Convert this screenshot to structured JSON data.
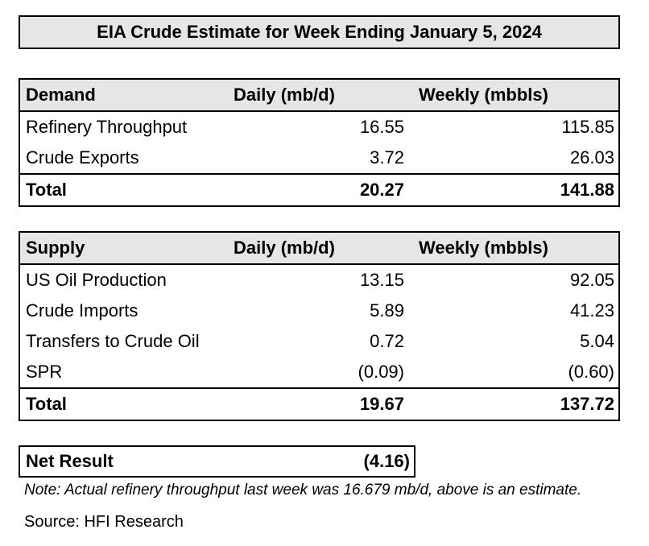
{
  "title": "EIA Crude Estimate for Week Ending January 5, 2024",
  "demand": {
    "headers": [
      "Demand",
      "Daily (mb/d)",
      "Weekly (mbbls)"
    ],
    "rows": [
      {
        "label": "Refinery Throughput",
        "daily": "16.55",
        "weekly": "115.85"
      },
      {
        "label": "Crude Exports",
        "daily": "3.72",
        "weekly": "26.03"
      }
    ],
    "total": {
      "label": "Total",
      "daily": "20.27",
      "weekly": "141.88"
    }
  },
  "supply": {
    "headers": [
      "Supply",
      "Daily (mb/d)",
      "Weekly (mbbls)"
    ],
    "rows": [
      {
        "label": "US Oil Production",
        "daily": "13.15",
        "weekly": "92.05"
      },
      {
        "label": "Crude Imports",
        "daily": "5.89",
        "weekly": "41.23"
      },
      {
        "label": "Transfers to Crude Oil",
        "daily": "0.72",
        "weekly": "5.04"
      },
      {
        "label": "SPR",
        "daily": "(0.09)",
        "weekly": "(0.60)"
      }
    ],
    "total": {
      "label": "Total",
      "daily": "19.67",
      "weekly": "137.72"
    }
  },
  "net_result": {
    "label": "Net Result",
    "value": "(4.16)"
  },
  "note": "Note: Actual refinery throughput last week was 16.679 mb/d, above is an estimate.",
  "source": "Source: HFI Research"
}
